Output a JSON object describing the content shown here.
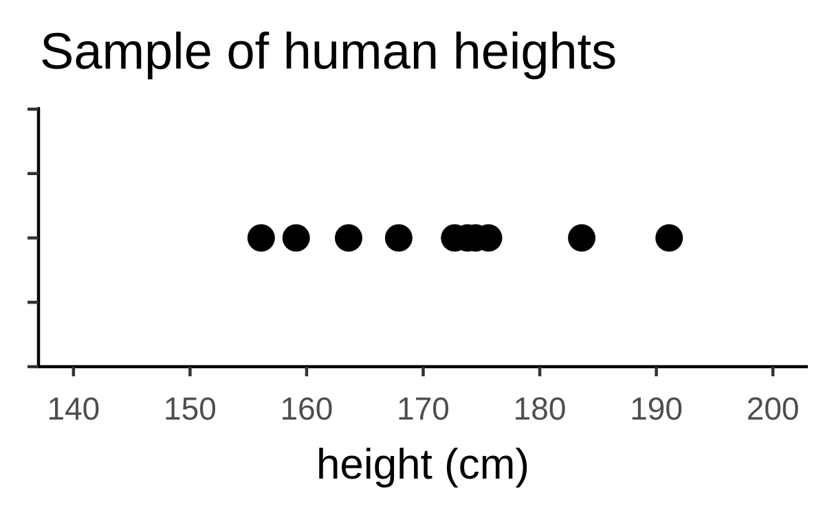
{
  "chart_data": {
    "type": "scatter",
    "title": "Sample of human heights",
    "xlabel": "height (cm)",
    "ylabel": "",
    "xlim": [
      137,
      203
    ],
    "ylim": [
      0,
      4
    ],
    "x_ticks": [
      140,
      150,
      160,
      170,
      180,
      190,
      200
    ],
    "x_tick_labels": [
      "140",
      "150",
      "160",
      "170",
      "180",
      "190",
      "200"
    ],
    "y_tick_count": 5,
    "grid": false,
    "point_color": "#000000",
    "series": [
      {
        "x": [
          156.1,
          159.1,
          163.6,
          167.9,
          172.7,
          173.8,
          174.5,
          175.6,
          183.6,
          191.1
        ],
        "y": [
          2,
          2,
          2,
          2,
          2,
          2,
          2,
          2,
          2,
          2
        ]
      }
    ]
  }
}
